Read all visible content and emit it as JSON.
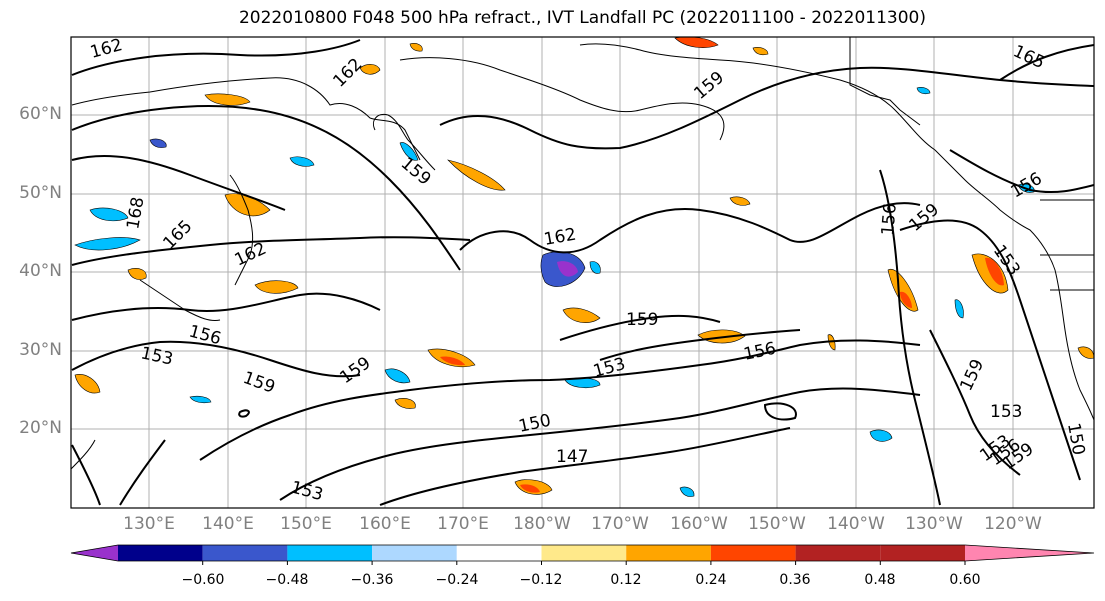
{
  "title": "2022010800 F048 500 hPa refract., IVT Landfall PC (2022011100 - 2022011300)",
  "lat_labels": [
    "60°N",
    "50°N",
    "40°N",
    "30°N",
    "20°N"
  ],
  "lon_labels": [
    "130°E",
    "140°E",
    "150°E",
    "160°E",
    "170°E",
    "180°W",
    "170°W",
    "160°W",
    "150°W",
    "140°W",
    "130°W",
    "120°W"
  ],
  "contour_labels": [
    "162",
    "162",
    "165",
    "159",
    "159",
    "168",
    "165",
    "162",
    "156",
    "153",
    "159",
    "159",
    "162",
    "159",
    "153",
    "156",
    "150",
    "147",
    "156",
    "159",
    "156",
    "153",
    "159",
    "153",
    "153",
    "156",
    "159",
    "150",
    "153"
  ],
  "colorbar": {
    "ticks": [
      "−0.60",
      "−0.48",
      "−0.36",
      "−0.24",
      "−0.12",
      "0.12",
      "0.24",
      "0.36",
      "0.48",
      "0.60"
    ],
    "colors": [
      "#9932cc",
      "#00008b",
      "#3a57cc",
      "#00bfff",
      "#add8ff",
      "#ffffff",
      "#ffe98a",
      "#ffa500",
      "#ff4500",
      "#b22222",
      "#ff85b0"
    ]
  }
}
